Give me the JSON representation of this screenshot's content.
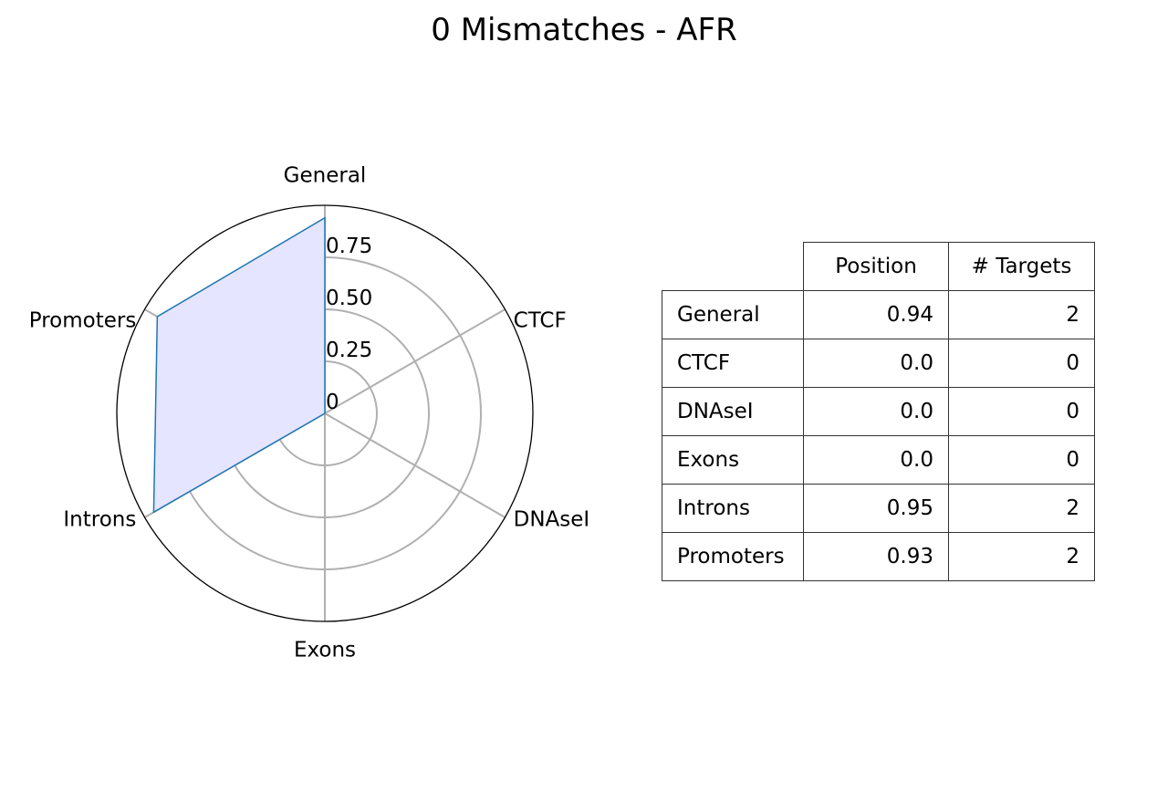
{
  "title": "0 Mismatches - AFR",
  "chart_data": {
    "type": "radar",
    "title": "0 Mismatches - AFR",
    "categories": [
      "General",
      "CTCF",
      "DNAseI",
      "Exons",
      "Introns",
      "Promoters"
    ],
    "series": [
      {
        "values": [
          0.94,
          0.0,
          0.0,
          0.0,
          0.95,
          0.93
        ],
        "line_color": "#1f77b4",
        "fill_color": "#e5e5ff"
      }
    ],
    "radial_ticks": [
      "0",
      "0.25",
      "0.50",
      "0.75"
    ],
    "radial_tick_values": [
      0,
      0.25,
      0.5,
      0.75
    ],
    "rlim": [
      0,
      1
    ],
    "grid": true,
    "grid_color": "#b0b0b0"
  },
  "table": {
    "columns": [
      "Position",
      "# Targets"
    ],
    "rows": [
      {
        "label": "General",
        "position": "0.94",
        "targets": "2"
      },
      {
        "label": "CTCF",
        "position": "0.0",
        "targets": "0"
      },
      {
        "label": "DNAseI",
        "position": "0.0",
        "targets": "0"
      },
      {
        "label": "Exons",
        "position": "0.0",
        "targets": "0"
      },
      {
        "label": "Introns",
        "position": "0.95",
        "targets": "2"
      },
      {
        "label": "Promoters",
        "position": "0.93",
        "targets": "2"
      }
    ]
  }
}
